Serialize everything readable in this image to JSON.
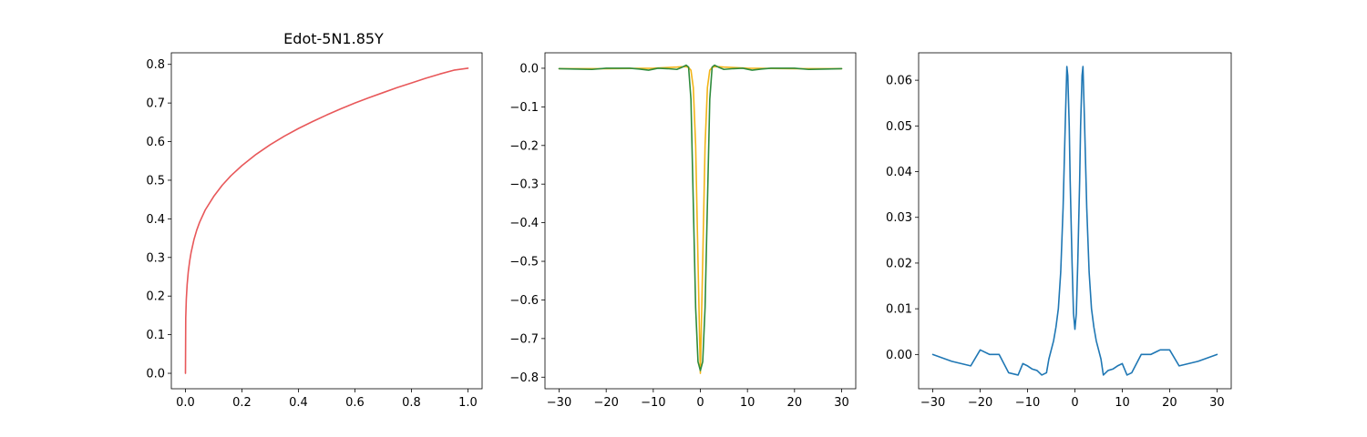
{
  "chart_data": [
    {
      "type": "line",
      "title": "Edot-5N1.85Y",
      "xlabel": "",
      "ylabel": "",
      "xlim": [
        -0.05,
        1.05
      ],
      "ylim": [
        -0.04,
        0.83
      ],
      "grid": false,
      "x_ticks": [
        0.0,
        0.2,
        0.4,
        0.6,
        0.8,
        1.0
      ],
      "x_tick_labels": [
        "0.0",
        "0.2",
        "0.4",
        "0.6",
        "0.8",
        "1.0"
      ],
      "y_ticks": [
        0.0,
        0.1,
        0.2,
        0.3,
        0.4,
        0.5,
        0.6,
        0.7,
        0.8
      ],
      "y_tick_labels": [
        "0.0",
        "0.1",
        "0.2",
        "0.3",
        "0.4",
        "0.5",
        "0.6",
        "0.7",
        "0.8"
      ],
      "series": [
        {
          "color": "#e8585a",
          "x": [
            0.0,
            0.001,
            0.003,
            0.006,
            0.01,
            0.015,
            0.02,
            0.03,
            0.04,
            0.05,
            0.07,
            0.1,
            0.13,
            0.16,
            0.2,
            0.25,
            0.3,
            0.35,
            0.4,
            0.45,
            0.5,
            0.55,
            0.6,
            0.65,
            0.7,
            0.75,
            0.8,
            0.85,
            0.9,
            0.95,
            1.0
          ],
          "y": [
            0.0,
            0.143,
            0.192,
            0.23,
            0.263,
            0.291,
            0.313,
            0.346,
            0.371,
            0.391,
            0.423,
            0.458,
            0.487,
            0.511,
            0.538,
            0.567,
            0.592,
            0.614,
            0.634,
            0.652,
            0.669,
            0.685,
            0.7,
            0.714,
            0.727,
            0.74,
            0.752,
            0.764,
            0.775,
            0.785,
            0.79
          ]
        }
      ]
    },
    {
      "type": "line",
      "title": "",
      "xlabel": "",
      "ylabel": "",
      "xlim": [
        -33,
        33
      ],
      "ylim": [
        -0.83,
        0.04
      ],
      "grid": false,
      "x_ticks": [
        -30,
        -20,
        -10,
        0,
        10,
        20,
        30
      ],
      "x_tick_labels": [
        "−30",
        "−20",
        "−10",
        "0",
        "10",
        "20",
        "30"
      ],
      "y_ticks": [
        0.0,
        -0.1,
        -0.2,
        -0.3,
        -0.4,
        -0.5,
        -0.6,
        -0.7,
        -0.8
      ],
      "y_tick_labels": [
        "0.0",
        "−0.1",
        "−0.2",
        "−0.3",
        "−0.4",
        "−0.5",
        "−0.6",
        "−0.7",
        "−0.8"
      ],
      "series": [
        {
          "color": "#f2b418",
          "x": [
            -30,
            -20,
            -10,
            -5,
            -4,
            -3,
            -2.5,
            -2,
            -1.5,
            -1,
            -0.5,
            0,
            0.5,
            1,
            1.5,
            2,
            2.5,
            3,
            4,
            5,
            10,
            20,
            30
          ],
          "y": [
            -0.001,
            -0.001,
            0.0,
            0.003,
            0.004,
            0.004,
            0.002,
            -0.005,
            -0.05,
            -0.2,
            -0.5,
            -0.79,
            -0.5,
            -0.2,
            -0.05,
            -0.005,
            0.002,
            0.004,
            0.004,
            0.003,
            0.0,
            -0.001,
            -0.001
          ]
        },
        {
          "color": "#2e8b3c",
          "x": [
            -30,
            -27,
            -23,
            -20,
            -17,
            -15,
            -13,
            -11,
            -9,
            -7,
            -5,
            -4,
            -3,
            -2.5,
            -2,
            -1.5,
            -1,
            -0.5,
            0,
            0.5,
            1,
            1.5,
            2,
            2.5,
            3,
            4,
            5,
            7,
            9,
            11,
            13,
            15,
            17,
            20,
            23,
            27,
            30
          ],
          "y": [
            -0.001,
            -0.002,
            -0.003,
            0.0,
            0.0,
            0.0,
            -0.002,
            -0.005,
            0.0,
            -0.001,
            -0.003,
            0.002,
            0.008,
            0.003,
            -0.08,
            -0.35,
            -0.62,
            -0.76,
            -0.783,
            -0.76,
            -0.62,
            -0.35,
            -0.08,
            0.003,
            0.008,
            0.002,
            -0.003,
            -0.001,
            0.0,
            -0.005,
            -0.002,
            0.0,
            0.0,
            0.0,
            -0.003,
            -0.002,
            -0.001
          ]
        }
      ]
    },
    {
      "type": "line",
      "title": "",
      "xlabel": "",
      "ylabel": "",
      "xlim": [
        -33,
        33
      ],
      "ylim": [
        -0.0075,
        0.066
      ],
      "grid": false,
      "x_ticks": [
        -30,
        -20,
        -10,
        0,
        10,
        20,
        30
      ],
      "x_tick_labels": [
        "−30",
        "−20",
        "−10",
        "0",
        "10",
        "20",
        "30"
      ],
      "y_ticks": [
        0.0,
        0.01,
        0.02,
        0.03,
        0.04,
        0.05,
        0.06
      ],
      "y_tick_labels": [
        "0.00",
        "0.01",
        "0.02",
        "0.03",
        "0.04",
        "0.05",
        "0.06"
      ],
      "series": [
        {
          "color": "#1f77b4",
          "x": [
            -30,
            -26,
            -22,
            -20,
            -18,
            -16,
            -14,
            -12,
            -11,
            -10,
            -9,
            -8,
            -7,
            -6,
            -5.5,
            -5,
            -4.5,
            -4,
            -3.5,
            -3,
            -2.5,
            -2,
            -1.7,
            -1.5,
            -1.2,
            -1,
            -0.6,
            -0.3,
            0,
            0.3,
            0.6,
            1,
            1.2,
            1.5,
            1.7,
            2,
            2.5,
            3,
            3.5,
            4,
            4.5,
            5,
            5.5,
            6,
            7,
            8,
            9,
            10,
            11,
            12,
            14,
            16,
            18,
            20,
            22,
            26,
            30
          ],
          "y": [
            0.0,
            -0.0015,
            -0.0025,
            0.001,
            0.0,
            0.0,
            -0.004,
            -0.0045,
            -0.002,
            -0.0025,
            -0.0032,
            -0.0035,
            -0.0045,
            -0.004,
            -0.001,
            0.001,
            0.003,
            0.006,
            0.01,
            0.018,
            0.032,
            0.052,
            0.063,
            0.061,
            0.05,
            0.038,
            0.02,
            0.009,
            0.0055,
            0.009,
            0.02,
            0.038,
            0.05,
            0.061,
            0.063,
            0.052,
            0.032,
            0.018,
            0.01,
            0.006,
            0.003,
            0.001,
            -0.001,
            -0.0045,
            -0.0035,
            -0.0032,
            -0.0025,
            -0.002,
            -0.0045,
            -0.004,
            0.0,
            0.0,
            0.001,
            0.001,
            -0.0025,
            -0.0015,
            0.0
          ]
        }
      ]
    }
  ]
}
